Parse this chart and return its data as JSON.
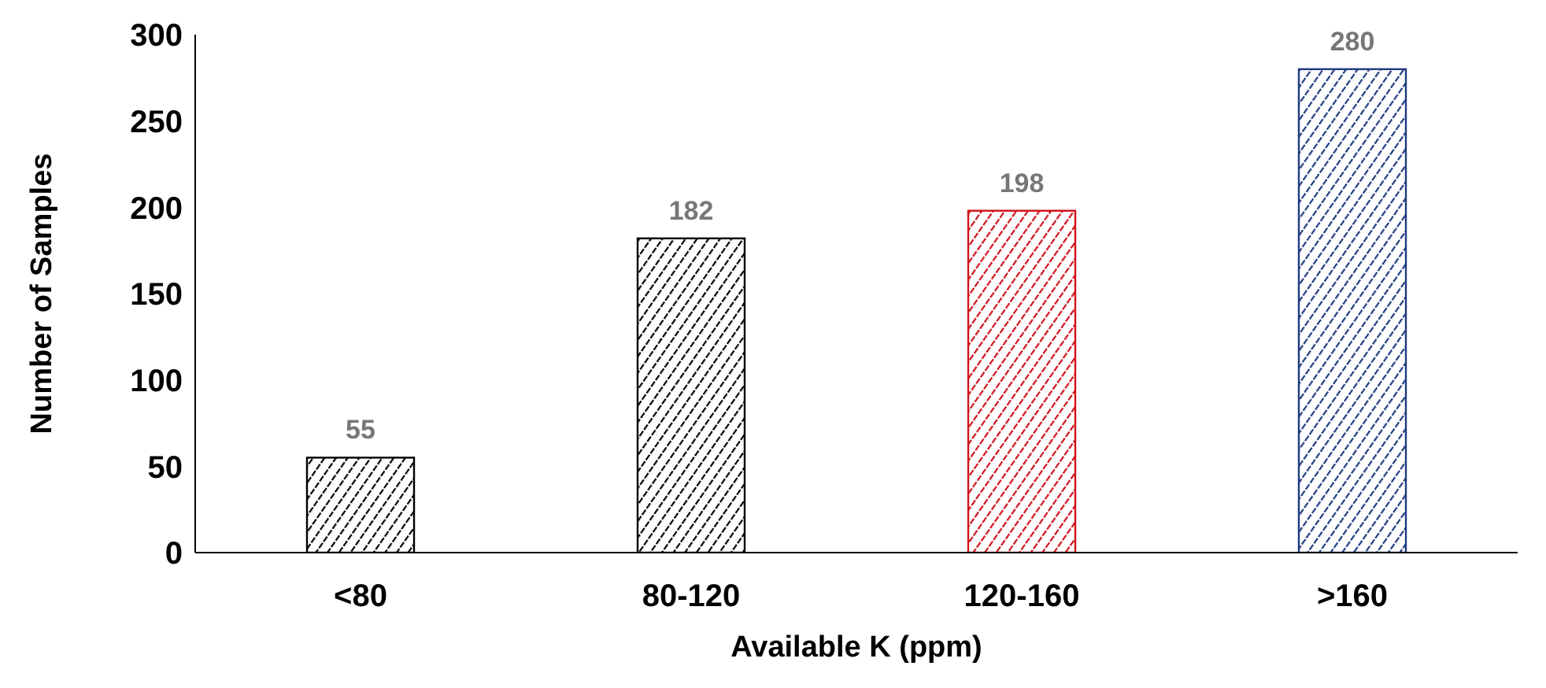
{
  "chart_data": {
    "type": "bar",
    "xlabel": "Available K (ppm)",
    "ylabel": "Number of Samples",
    "categories": [
      "<80",
      "80-120",
      "120-160",
      ">160"
    ],
    "values": [
      55,
      182,
      198,
      280
    ],
    "colors": [
      "#000000",
      "#000000",
      "#d0101a",
      "#1f3a80"
    ],
    "ylim": [
      0,
      300
    ],
    "yticks": [
      0,
      50,
      100,
      150,
      200,
      250,
      300
    ],
    "data_labels": true,
    "grid": false,
    "legend": false
  }
}
